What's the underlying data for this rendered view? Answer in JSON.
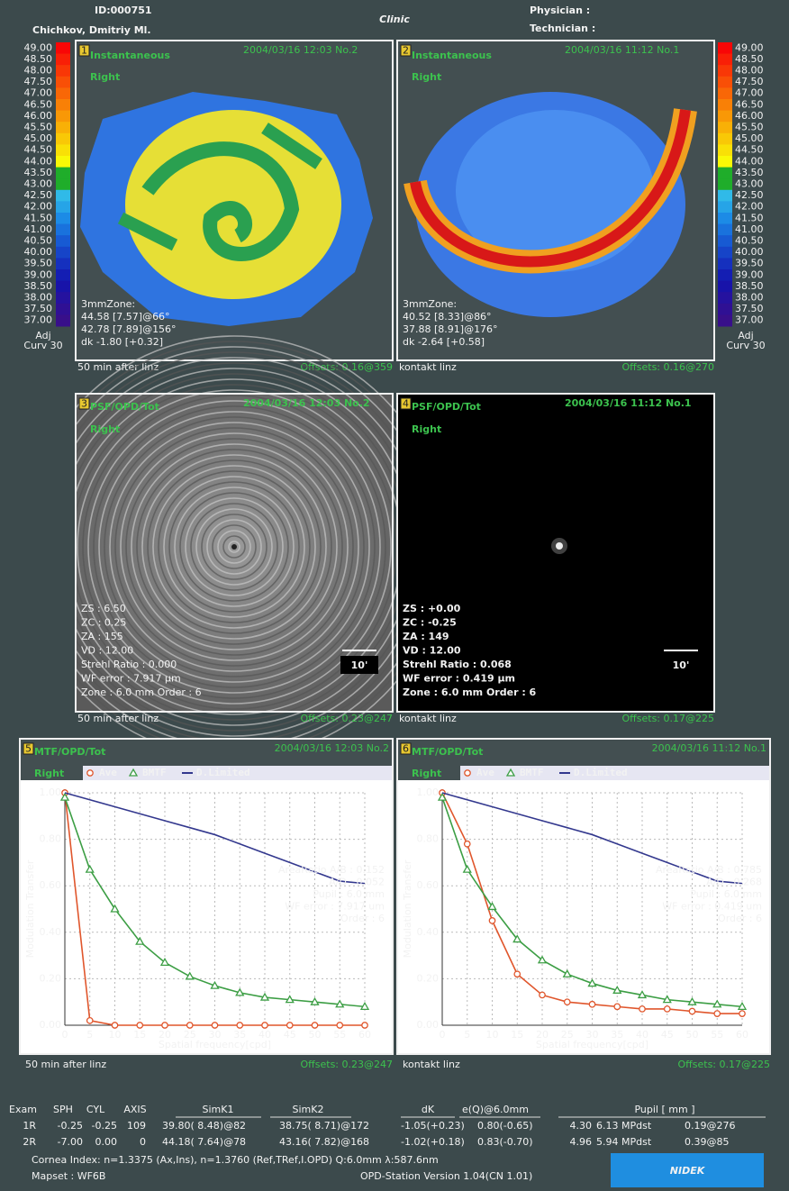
{
  "header": {
    "id": "ID:000751",
    "patient": "Chichkov, Dmitriy Ml.",
    "clinic": "Clinic",
    "physician": "Physician :",
    "technician": "Technician :"
  },
  "color_scale": {
    "labels": [
      "49.00",
      "48.50",
      "48.00",
      "47.50",
      "47.00",
      "46.50",
      "46.00",
      "45.50",
      "45.00",
      "44.50",
      "44.00",
      "43.50",
      "43.00",
      "42.50",
      "42.00",
      "41.50",
      "41.00",
      "40.50",
      "40.00",
      "39.50",
      "39.00",
      "38.50",
      "38.00",
      "37.50",
      "37.00"
    ],
    "mode": "Adj",
    "curvature": "Curv 30"
  },
  "maps": [
    {
      "number": "1",
      "title": "Instantaneous",
      "eye": "Right",
      "date": "2004/03/16 12:03 No.2",
      "zone": [
        "3mmZone:",
        "44.58 [7.57]@66°",
        "42.78 [7.89]@156°",
        "dk -1.80 [+0.32]"
      ],
      "note": "50 min  after  linz",
      "offsets": "Offsets: 0.16@359"
    },
    {
      "number": "2",
      "title": "Instantaneous",
      "eye": "Right",
      "date": "2004/03/16 11:12 No.1",
      "zone": [
        "3mmZone:",
        "40.52 [8.33]@86°",
        "37.88 [8.91]@176°",
        "dk -2.64 [+0.58]"
      ],
      "note": "kontakt  linz",
      "offsets": "Offsets: 0.16@270"
    }
  ],
  "psf": [
    {
      "number": "3",
      "title": "PSF/OPD/Tot",
      "eye": "Right",
      "date": "2004/03/16 12:03 No.2",
      "lines": [
        "ZS :  6.50",
        "ZC :  0.25",
        "ZA :  155",
        "VD : 12.00",
        "Strehl Ratio : 0.000",
        "WF error : 7.917 µm",
        "Zone : 6.0 mm  Order : 6"
      ],
      "scale": "10'",
      "note": "50 min  after  linz",
      "offsets": "Offsets: 0.23@247"
    },
    {
      "number": "4",
      "title": "PSF/OPD/Tot",
      "eye": "Right",
      "date": "2004/03/16 11:12 No.1",
      "lines": [
        "ZS : +0.00",
        "ZC : -0.25",
        "ZA : 149",
        "VD : 12.00",
        "Strehl Ratio : 0.068",
        "WF error : 0.419 µm",
        "Zone : 6.0 mm  Order : 6"
      ],
      "scale": "10'",
      "note": "kontakt  linz",
      "offsets": "Offsets: 0.17@225"
    }
  ],
  "chart_data": [
    {
      "type": "line",
      "number": "5",
      "title": "MTF/OPD/Tot",
      "eye": "Right",
      "date": "2004/03/16 12:03 No.2",
      "x": [
        0,
        5,
        10,
        15,
        20,
        25,
        30,
        35,
        40,
        45,
        50,
        55,
        60
      ],
      "series": [
        {
          "name": "Ave",
          "color": "#e0562c",
          "marker": "circle",
          "values": [
            1.0,
            0.02,
            0,
            0,
            0,
            0,
            0,
            0,
            0,
            0,
            0,
            0,
            0
          ]
        },
        {
          "name": "BMTF",
          "color": "#3c9e44",
          "marker": "triangle",
          "values": [
            0.98,
            0.67,
            0.5,
            0.36,
            0.27,
            0.21,
            0.17,
            0.14,
            0.12,
            0.11,
            0.1,
            0.09,
            0.08
          ]
        },
        {
          "name": "D.Limited",
          "color": "#33388e",
          "values": [
            1.0,
            0.97,
            0.94,
            0.91,
            0.88,
            0.85,
            0.82,
            0.78,
            0.74,
            0.7,
            0.66,
            0.62,
            0.61
          ]
        }
      ],
      "xlim": [
        0,
        60
      ],
      "ylim": [
        0,
        1
      ],
      "xticks": [
        0,
        5,
        10,
        15,
        20,
        25,
        30,
        35,
        40,
        45,
        50,
        55,
        60
      ],
      "yticks": [
        {
          "value": 0,
          "label": "0.00"
        },
        {
          "value": 0.2,
          "label": "0.20"
        },
        {
          "value": 0.4,
          "label": "0.40"
        },
        {
          "value": 0.6,
          "label": "0.60"
        },
        {
          "value": 0.8,
          "label": "0.80"
        },
        {
          "value": 1,
          "label": "1.00"
        }
      ],
      "grid": true,
      "x_label": "Spatial frequency[cpd]",
      "y_label": "Modulation Transfer",
      "stats": [
        "AreaRatio A/B : 0.152",
        "A/D : 0.052",
        "Pupil : 6.0 mm",
        "WF error : 7.917 um",
        "Order : 6"
      ],
      "note": "50 min  after  linz",
      "offsets": "Offsets: 0.23@247"
    },
    {
      "type": "line",
      "number": "6",
      "title": "MTF/OPD/Tot",
      "eye": "Right",
      "date": "2004/03/16 11:12 No.1",
      "x": [
        0,
        5,
        10,
        15,
        20,
        25,
        30,
        35,
        40,
        45,
        50,
        55,
        60
      ],
      "series": [
        {
          "name": "Ave",
          "color": "#e0562c",
          "marker": "circle",
          "values": [
            1.0,
            0.78,
            0.45,
            0.22,
            0.13,
            0.1,
            0.09,
            0.08,
            0.07,
            0.07,
            0.06,
            0.05,
            0.05
          ]
        },
        {
          "name": "BMTF",
          "color": "#3c9e44",
          "marker": "triangle",
          "values": [
            0.98,
            0.67,
            0.51,
            0.37,
            0.28,
            0.22,
            0.18,
            0.15,
            0.13,
            0.11,
            0.1,
            0.09,
            0.08
          ]
        },
        {
          "name": "D.Limited",
          "color": "#33388e",
          "values": [
            1.0,
            0.97,
            0.94,
            0.91,
            0.88,
            0.85,
            0.82,
            0.78,
            0.74,
            0.7,
            0.66,
            0.62,
            0.61
          ]
        }
      ],
      "xlim": [
        0,
        60
      ],
      "ylim": [
        0,
        1
      ],
      "xticks": [
        0,
        5,
        10,
        15,
        20,
        25,
        30,
        35,
        40,
        45,
        50,
        55,
        60
      ],
      "yticks": [
        {
          "value": 0,
          "label": "0.00"
        },
        {
          "value": 0.2,
          "label": "0.20"
        },
        {
          "value": 0.4,
          "label": "0.40"
        },
        {
          "value": 0.6,
          "label": "0.60"
        },
        {
          "value": 0.8,
          "label": "0.80"
        },
        {
          "value": 1,
          "label": "1.00"
        }
      ],
      "grid": true,
      "x_label": "Spatial frequency[cpd]",
      "y_label": "Modulation Transfer",
      "stats": [
        "AreaRatio A/B : 0.785",
        "A/D : 0.268",
        "Pupil : 6.0 mm",
        "WF error : 0.419 um",
        "Order : 6"
      ],
      "note": "kontakt  linz",
      "offsets": "Offsets: 0.17@225"
    }
  ],
  "table": {
    "header": [
      "Exam",
      "SPH",
      "CYL",
      "AXIS",
      "SimK1",
      "SimK2",
      "dK",
      "e(Q)@6.0mm",
      "Pupil [ mm ]"
    ],
    "rows": [
      [
        "1R",
        "-0.25",
        "-0.25",
        "109",
        "39.80( 8.48)@82",
        "38.75( 8.71)@172",
        "-1.05(+0.23)",
        "0.80(-0.65)",
        "4.30",
        "6.13 MPdst",
        "0.19@276"
      ],
      [
        "2R",
        "-7.00",
        "0.00",
        "0",
        "44.18( 7.64)@78",
        "43.16( 7.82)@168",
        "-1.02(+0.18)",
        "0.83(-0.70)",
        "4.96",
        "5.94 MPdst",
        "0.39@85"
      ]
    ]
  },
  "footer": {
    "cornea_index": "Cornea Index: n=1.3375 (Ax,Ins), n=1.3760 (Ref,TRef,I.OPD)  Q:6.0mm  λ:587.6nm",
    "mapset": "Mapset : WF6B",
    "version": "OPD-Station Version 1.04(CN 1.01)",
    "logo": "NIDEK"
  }
}
